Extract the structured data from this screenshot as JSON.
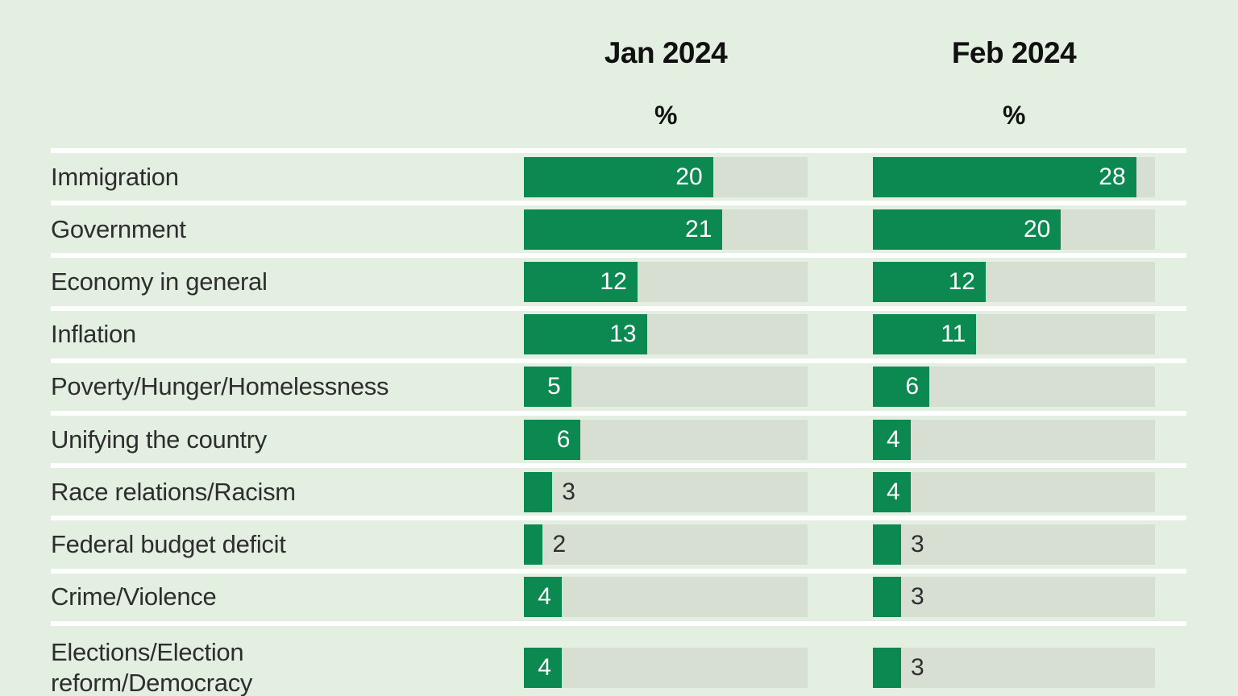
{
  "header": {
    "columns": [
      {
        "label": "Jan 2024",
        "unit": "%"
      },
      {
        "label": "Feb 2024",
        "unit": "%"
      }
    ]
  },
  "colors": {
    "background": "#e3f0e1",
    "bar_track": "#d6dfd1",
    "bar_fill": "#0b8950",
    "row_separator": "#ffffff",
    "text_dark": "#2e2e2e",
    "value_label_inside": "#ffffff"
  },
  "chart_data": {
    "type": "bar",
    "orientation": "horizontal",
    "title": "",
    "unit": "%",
    "xlim": [
      0,
      30
    ],
    "grid": false,
    "legend_position": "column-headers",
    "value_label_inside_threshold": 4,
    "categories": [
      "Immigration",
      "Government",
      "Economy in general",
      "Inflation",
      "Poverty/Hunger/Homelessness",
      "Unifying the country",
      "Race relations/Racism",
      "Federal budget deficit",
      "Crime/Violence",
      "Elections/Election\nreform/Democracy"
    ],
    "series": [
      {
        "name": "Jan 2024",
        "values": [
          20,
          21,
          12,
          13,
          5,
          6,
          3,
          2,
          4,
          4
        ]
      },
      {
        "name": "Feb 2024",
        "values": [
          28,
          20,
          12,
          11,
          6,
          4,
          4,
          3,
          3,
          3
        ]
      }
    ]
  }
}
